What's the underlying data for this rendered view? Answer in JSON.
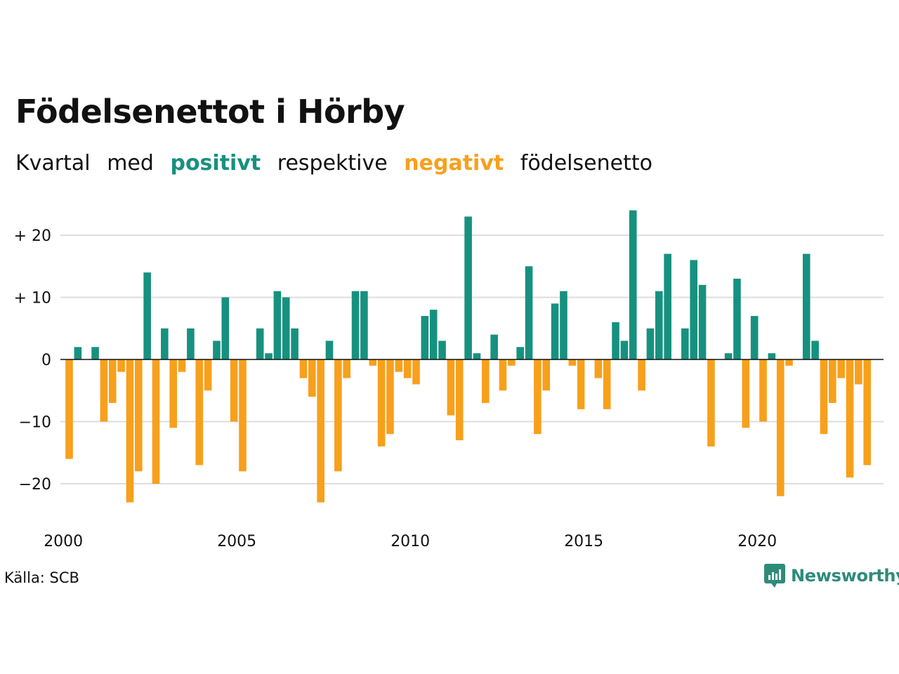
{
  "title": "Födelsenettot i Hörby",
  "subtitle": {
    "part1": "Kvartal",
    "part2": "med",
    "positive": "positivt",
    "part3": "respektive",
    "negative": "negativt",
    "part4": "födelsenetto"
  },
  "source": "Källa: SCB",
  "brand": "Newsworthy",
  "colors": {
    "positive": "#17917f",
    "negative": "#f7a01c",
    "grid": "#dddddd",
    "brand": "#2e8b7a"
  },
  "chart_data": {
    "type": "bar",
    "start": {
      "year": 2000,
      "quarter": 1
    },
    "y_ticks": [
      {
        "value": 20,
        "label": "+ 20"
      },
      {
        "value": 10,
        "label": "+ 10"
      },
      {
        "value": 0,
        "label": "0"
      },
      {
        "value": -10,
        "label": "−10"
      },
      {
        "value": -20,
        "label": "−20"
      }
    ],
    "x_ticks": [
      {
        "value": 2000,
        "label": "2000"
      },
      {
        "value": 2005,
        "label": "2005"
      },
      {
        "value": 2010,
        "label": "2010"
      },
      {
        "value": 2015,
        "label": "2015"
      },
      {
        "value": 2020,
        "label": "2020"
      }
    ],
    "ylim": [
      -25,
      24
    ],
    "values": [
      -16,
      2,
      0,
      2,
      -10,
      -7,
      -2,
      -23,
      -18,
      14,
      -20,
      5,
      -11,
      -2,
      5,
      -17,
      -5,
      3,
      10,
      -10,
      -18,
      0,
      5,
      1,
      11,
      10,
      5,
      -3,
      -6,
      -23,
      3,
      -18,
      -3,
      11,
      11,
      -1,
      -14,
      -12,
      -2,
      -3,
      -4,
      7,
      8,
      3,
      -9,
      -13,
      23,
      1,
      -7,
      4,
      -5,
      -1,
      2,
      15,
      -12,
      -5,
      9,
      11,
      -1,
      -8,
      0,
      -3,
      -8,
      6,
      3,
      24,
      -5,
      5,
      11,
      17,
      0,
      5,
      16,
      12,
      -14,
      0,
      1,
      13,
      -11,
      7,
      -10,
      1,
      -22,
      -1,
      0,
      17,
      3,
      -12,
      -7,
      -3,
      -19,
      -4,
      -17
    ]
  }
}
